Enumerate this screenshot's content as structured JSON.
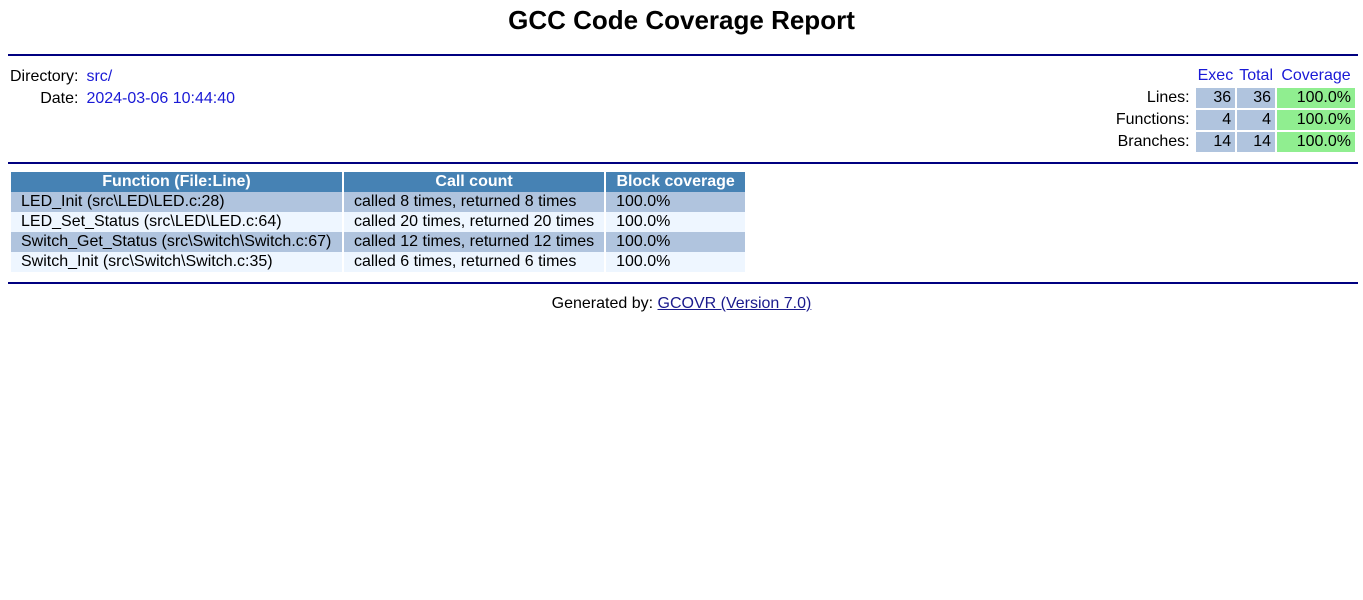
{
  "header": {
    "title": "GCC Code Coverage Report"
  },
  "info": {
    "directory_label": "Directory:",
    "directory_value": "src/",
    "date_label": "Date:",
    "date_value": "2024-03-06 10:44:40"
  },
  "summary": {
    "columns": [
      "Exec",
      "Total",
      "Coverage"
    ],
    "rows": [
      {
        "label": "Lines:",
        "exec": "36",
        "total": "36",
        "coverage": "100.0%"
      },
      {
        "label": "Functions:",
        "exec": "4",
        "total": "4",
        "coverage": "100.0%"
      },
      {
        "label": "Branches:",
        "exec": "14",
        "total": "14",
        "coverage": "100.0%"
      }
    ]
  },
  "functions": {
    "columns": [
      "Function (File:Line)",
      "Call count",
      "Block coverage"
    ],
    "rows": [
      {
        "function": "LED_Init (src\\LED\\LED.c:28)",
        "calls": "called 8 times, returned 8 times",
        "coverage": "100.0%"
      },
      {
        "function": "LED_Set_Status (src\\LED\\LED.c:64)",
        "calls": "called 20 times, returned 20 times",
        "coverage": "100.0%"
      },
      {
        "function": "Switch_Get_Status (src\\Switch\\Switch.c:67)",
        "calls": "called 12 times, returned 12 times",
        "coverage": "100.0%"
      },
      {
        "function": "Switch_Init (src\\Switch\\Switch.c:35)",
        "calls": "called 6 times, returned 6 times",
        "coverage": "100.0%"
      }
    ]
  },
  "footer": {
    "generated_label": "Generated by:",
    "link_text": "GCOVR (Version 7.0)"
  },
  "colors": {
    "rule": "#000080",
    "header_bg": "#4682b4",
    "row_odd": "#b0c4de",
    "row_even": "#eef6ff",
    "coverage_high": "#90ee90",
    "link": "#1a1ad6"
  }
}
